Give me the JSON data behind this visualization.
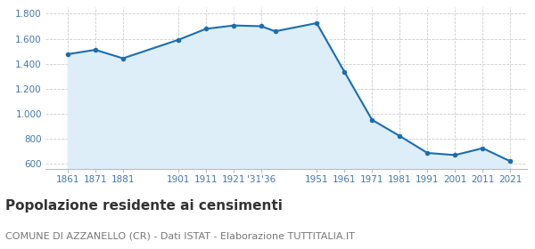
{
  "years": [
    1861,
    1871,
    1881,
    1901,
    1911,
    1921,
    1931,
    1936,
    1951,
    1961,
    1971,
    1981,
    1991,
    2001,
    2011,
    2021
  ],
  "population": [
    1476,
    1511,
    1443,
    1591,
    1679,
    1706,
    1700,
    1659,
    1725,
    1336,
    951,
    822,
    686,
    669,
    724,
    619
  ],
  "line_color": "#1b6eae",
  "fill_color": "#ddeef8",
  "marker_color": "#1b6eae",
  "bg_color": "#ffffff",
  "grid_color": "#cccccc",
  "ylim": [
    555,
    1850
  ],
  "yticks": [
    600,
    800,
    1000,
    1200,
    1400,
    1600,
    1800
  ],
  "xtick_positions": [
    1861,
    1871,
    1881,
    1901,
    1911,
    1921,
    1931,
    1951,
    1961,
    1971,
    1981,
    1991,
    2001,
    2011,
    2021
  ],
  "xtick_labels": [
    "1861",
    "1871",
    "1881",
    "1901",
    "1911",
    "1921",
    "'31'36",
    "1951",
    "1961",
    "1971",
    "1981",
    "1991",
    "2001",
    "2011",
    "2021"
  ],
  "title": "Popolazione residente ai censimenti",
  "subtitle": "COMUNE DI AZZANELLO (CR) - Dati ISTAT - Elaborazione TUTTITALIA.IT",
  "title_fontsize": 11,
  "subtitle_fontsize": 8,
  "title_color": "#333333",
  "subtitle_color": "#777777",
  "axis_label_color": "#4477aa",
  "axis_tick_fontsize": 7.5,
  "xlim_left": 1853,
  "xlim_right": 2027
}
